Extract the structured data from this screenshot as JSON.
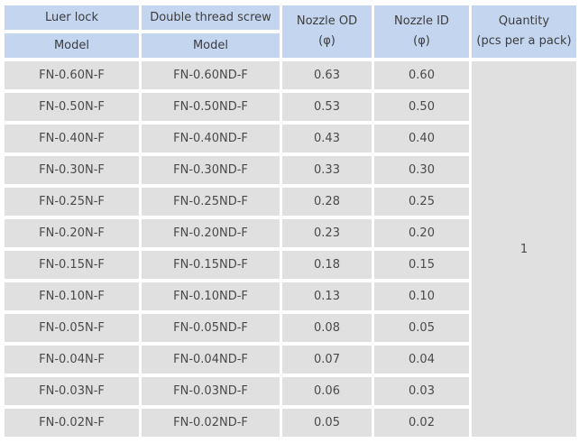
{
  "colors": {
    "header_bg": "#c3d5ef",
    "row_bg": "#e0e0e0",
    "header_text": "#3d3d3d",
    "body_text": "#4a4a4a"
  },
  "table": {
    "header": {
      "luer_lock": {
        "line1": "Luer lock",
        "line2": "Model"
      },
      "double_thread_screw": {
        "line1": "Double thread screw",
        "line2": "Model"
      },
      "nozzle_od": {
        "line1": "Nozzle OD",
        "line2": "(φ)"
      },
      "nozzle_id": {
        "line1": "Nozzle ID",
        "line2": "(φ)"
      },
      "quantity": {
        "line1": "Quantity",
        "line2": "(pcs per a pack)"
      }
    },
    "rows": [
      {
        "luer_model": "FN-0.60N-F",
        "double_thread_model": "FN-0.60ND-F",
        "nozzle_od": "0.63",
        "nozzle_id": "0.60"
      },
      {
        "luer_model": "FN-0.50N-F",
        "double_thread_model": "FN-0.50ND-F",
        "nozzle_od": "0.53",
        "nozzle_id": "0.50"
      },
      {
        "luer_model": "FN-0.40N-F",
        "double_thread_model": "FN-0.40ND-F",
        "nozzle_od": "0.43",
        "nozzle_id": "0.40"
      },
      {
        "luer_model": "FN-0.30N-F",
        "double_thread_model": "FN-0.30ND-F",
        "nozzle_od": "0.33",
        "nozzle_id": "0.30"
      },
      {
        "luer_model": "FN-0.25N-F",
        "double_thread_model": "FN-0.25ND-F",
        "nozzle_od": "0.28",
        "nozzle_id": "0.25"
      },
      {
        "luer_model": "FN-0.20N-F",
        "double_thread_model": "FN-0.20ND-F",
        "nozzle_od": "0.23",
        "nozzle_id": "0.20"
      },
      {
        "luer_model": "FN-0.15N-F",
        "double_thread_model": "FN-0.15ND-F",
        "nozzle_od": "0.18",
        "nozzle_id": "0.15"
      },
      {
        "luer_model": "FN-0.10N-F",
        "double_thread_model": "FN-0.10ND-F",
        "nozzle_od": "0.13",
        "nozzle_id": "0.10"
      },
      {
        "luer_model": "FN-0.05N-F",
        "double_thread_model": "FN-0.05ND-F",
        "nozzle_od": "0.08",
        "nozzle_id": "0.05"
      },
      {
        "luer_model": "FN-0.04N-F",
        "double_thread_model": "FN-0.04ND-F",
        "nozzle_od": "0.07",
        "nozzle_id": "0.04"
      },
      {
        "luer_model": "FN-0.03N-F",
        "double_thread_model": "FN-0.03ND-F",
        "nozzle_od": "0.06",
        "nozzle_id": "0.03"
      },
      {
        "luer_model": "FN-0.02N-F",
        "double_thread_model": "FN-0.02ND-F",
        "nozzle_od": "0.05",
        "nozzle_id": "0.02"
      }
    ],
    "quantity_value": "1"
  }
}
